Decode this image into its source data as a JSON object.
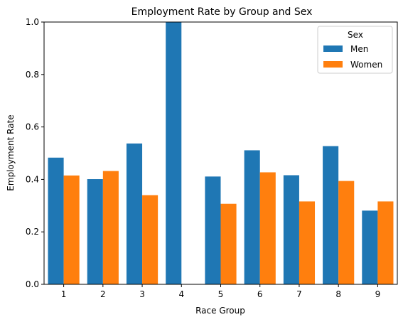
{
  "chart_data": {
    "type": "bar",
    "title": "Employment Rate by Group and Sex",
    "xlabel": "Race Group",
    "ylabel": "Employment Rate",
    "categories": [
      "1",
      "2",
      "3",
      "4",
      "5",
      "6",
      "7",
      "8",
      "9"
    ],
    "ylim": [
      0,
      1.0
    ],
    "yticks": [
      "0.0",
      "0.2",
      "0.4",
      "0.6",
      "0.8",
      "1.0"
    ],
    "grid": false,
    "legend": {
      "title": "Sex",
      "placement": "top-right"
    },
    "series": [
      {
        "name": "Men",
        "color": "#1f77b4",
        "values": [
          0.483,
          0.401,
          0.537,
          1.0,
          0.411,
          0.511,
          0.416,
          0.527,
          0.281
        ]
      },
      {
        "name": "Women",
        "color": "#ff7f0e",
        "values": [
          0.415,
          0.432,
          0.34,
          null,
          0.307,
          0.427,
          0.316,
          0.394,
          0.316
        ]
      }
    ]
  }
}
